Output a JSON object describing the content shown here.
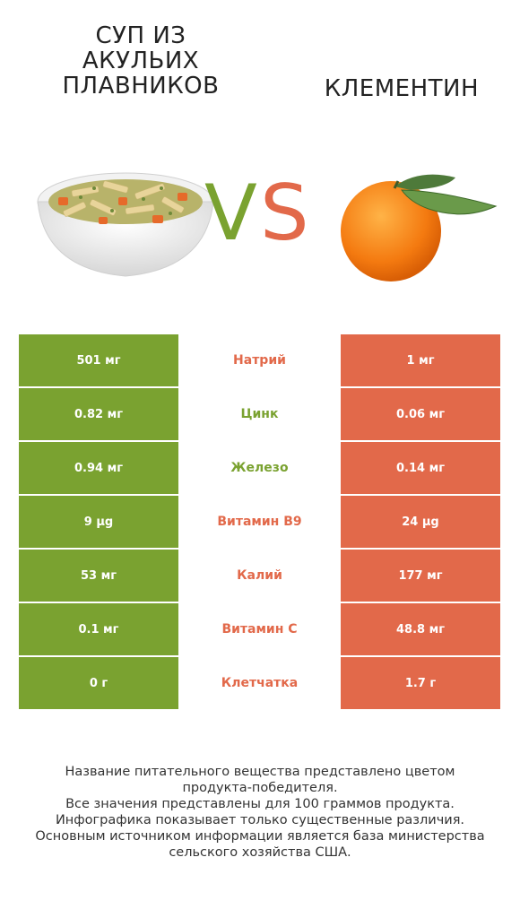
{
  "left_product": {
    "name": "СУП ИЗ\nАКУЛЬИХ\nПЛАВНИКОВ",
    "image_icon": "soup-bowl-icon"
  },
  "right_product": {
    "name": "КЛЕМЕНТИН",
    "image_icon": "clementine-icon"
  },
  "vs": {
    "v": "V",
    "s": "S"
  },
  "colors": {
    "left": "#7aa230",
    "right": "#e2694a"
  },
  "rows": [
    {
      "left": "501 мг",
      "label": "Натрий",
      "right": "1 мг",
      "winner": "right"
    },
    {
      "left": "0.82 мг",
      "label": "Цинк",
      "right": "0.06 мг",
      "winner": "left"
    },
    {
      "left": "0.94 мг",
      "label": "Железо",
      "right": "0.14 мг",
      "winner": "left"
    },
    {
      "left": "9 µg",
      "label": "Витамин B9",
      "right": "24 µg",
      "winner": "right"
    },
    {
      "left": "53 мг",
      "label": "Калий",
      "right": "177 мг",
      "winner": "right"
    },
    {
      "left": "0.1 мг",
      "label": "Витамин C",
      "right": "48.8 мг",
      "winner": "right"
    },
    {
      "left": "0 г",
      "label": "Клетчатка",
      "right": "1.7 г",
      "winner": "right"
    }
  ],
  "footer": {
    "line1": "Название питательного вещества представлено цветом",
    "line2": "продукта-победителя.",
    "line3": "Все значения представлены для 100 граммов продукта.",
    "line4": "Инфографика показывает только существенные различия.",
    "line5": "Основным источником информации является база министерства",
    "line6": "сельского хозяйства США."
  }
}
